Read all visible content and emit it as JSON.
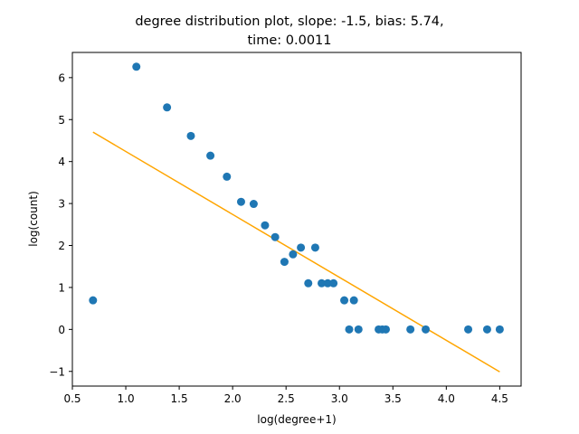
{
  "chart_data": {
    "type": "scatter",
    "title_lines": [
      "degree distribution plot, slope: -1.5, bias: 5.74,",
      "time: 0.0011"
    ],
    "xlabel": "log(degree+1)",
    "ylabel": "log(count)",
    "xlim": [
      0.5,
      4.7
    ],
    "ylim": [
      -1.35,
      6.6
    ],
    "xticks": [
      0.5,
      1.0,
      1.5,
      2.0,
      2.5,
      3.0,
      3.5,
      4.0,
      4.5
    ],
    "xtick_labels": [
      "0.5",
      "1.0",
      "1.5",
      "2.0",
      "2.5",
      "3.0",
      "3.5",
      "4.0",
      "4.5"
    ],
    "yticks": [
      -1,
      0,
      1,
      2,
      3,
      4,
      5,
      6
    ],
    "ytick_labels": [
      "−1",
      "0",
      "1",
      "2",
      "3",
      "4",
      "5",
      "6"
    ],
    "grid": false,
    "points": {
      "color": "#1f77b4",
      "x": [
        0.693,
        1.099,
        1.386,
        1.609,
        1.792,
        1.946,
        2.079,
        2.197,
        2.303,
        2.398,
        2.485,
        2.565,
        2.639,
        2.708,
        2.773,
        2.833,
        2.89,
        2.944,
        3.045,
        3.091,
        3.135,
        3.178,
        3.367,
        3.401,
        3.434,
        3.664,
        3.807,
        4.205,
        4.382,
        4.5
      ],
      "y": [
        0.693,
        6.26,
        5.29,
        4.61,
        4.14,
        3.64,
        3.04,
        2.99,
        2.48,
        2.2,
        1.61,
        1.79,
        1.95,
        1.1,
        1.95,
        1.1,
        1.1,
        1.1,
        0.693,
        0.0,
        0.693,
        0.0,
        0.0,
        0.0,
        0.0,
        0.0,
        0.0,
        0.0,
        0.0,
        0.0
      ]
    },
    "fit_line": {
      "color": "#ffa500",
      "slope": -1.5,
      "bias": 5.74,
      "x": [
        0.693,
        4.5
      ]
    }
  }
}
